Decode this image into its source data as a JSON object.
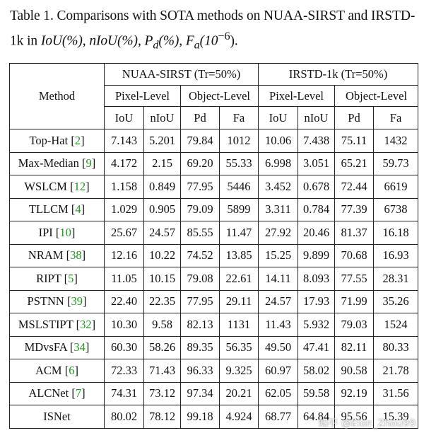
{
  "caption": {
    "prefix": "Table 1. Comparisons with SOTA methods on NUAA-SIRST and IRSTD-1k in ",
    "metrics": "IoU(%), nIoU(%), P",
    "pd_sub": "d",
    "pd_suffix": "(%), F",
    "fa_sub": "a",
    "fa_suffix": "(10",
    "exp": "−6",
    "end": ")."
  },
  "table": {
    "method_header": "Method",
    "datasets": [
      "NUAA-SIRST (Tr=50%)",
      "IRSTD-1k (Tr=50%)"
    ],
    "levels": [
      "Pixel-Level",
      "Object-Level",
      "Pixel-Level",
      "Object-Level"
    ],
    "metrics": [
      "IoU",
      "nIoU",
      "Pd",
      "Fa",
      "IoU",
      "nIoU",
      "Pd",
      "Fa"
    ],
    "rows": [
      {
        "method": "Top-Hat",
        "cite": "2",
        "values": [
          "7.143",
          "5.201",
          "79.84",
          "1012",
          "10.06",
          "7.438",
          "75.11",
          "1432"
        ]
      },
      {
        "method": "Max-Median",
        "cite": "9",
        "values": [
          "4.172",
          "2.15",
          "69.20",
          "55.33",
          "6.998",
          "3.051",
          "65.21",
          "59.73"
        ]
      },
      {
        "method": "WSLCM",
        "cite": "12",
        "values": [
          "1.158",
          "0.849",
          "77.95",
          "5446",
          "3.452",
          "0.678",
          "72.44",
          "6619"
        ]
      },
      {
        "method": "TLLCM",
        "cite": "4",
        "values": [
          "1.029",
          "0.905",
          "79.09",
          "5899",
          "3.311",
          "0.784",
          "77.39",
          "6738"
        ]
      },
      {
        "method": "IPI",
        "cite": "10",
        "values": [
          "25.67",
          "24.57",
          "85.55",
          "11.47",
          "27.92",
          "20.46",
          "81.37",
          "16.18"
        ]
      },
      {
        "method": "NRAM",
        "cite": "38",
        "values": [
          "12.16",
          "10.22",
          "74.52",
          "13.85",
          "15.25",
          "9.899",
          "70.68",
          "16.93"
        ]
      },
      {
        "method": "RIPT",
        "cite": "5",
        "values": [
          "11.05",
          "10.15",
          "79.08",
          "22.61",
          "14.11",
          "8.093",
          "77.55",
          "28.31"
        ]
      },
      {
        "method": "PSTNN",
        "cite": "39",
        "values": [
          "22.40",
          "22.35",
          "77.95",
          "29.11",
          "24.57",
          "17.93",
          "71.99",
          "35.26"
        ]
      },
      {
        "method": "MSLSTIPT",
        "cite": "32",
        "values": [
          "10.30",
          "9.58",
          "82.13",
          "1131",
          "11.43",
          "5.932",
          "79.03",
          "1524"
        ]
      },
      {
        "method": "MDvsFA",
        "cite": "34",
        "values": [
          "60.30",
          "58.26",
          "89.35",
          "56.35",
          "49.50",
          "47.41",
          "82.11",
          "80.33"
        ]
      },
      {
        "method": "ACM",
        "cite": "6",
        "values": [
          "72.33",
          "71.43",
          "96.33",
          "9.325",
          "60.97",
          "58.02",
          "90.58",
          "21.78"
        ]
      },
      {
        "method": "ALCNet",
        "cite": "7",
        "values": [
          "74.31",
          "73.12",
          "97.34",
          "20.21",
          "62.05",
          "59.58",
          "92.19",
          "31.56"
        ]
      }
    ],
    "ours": {
      "method": "ISNet",
      "values": [
        "80.02",
        "78.12",
        "99.18",
        "4.924",
        "68.77",
        "64.84",
        "95.56",
        "15.39"
      ]
    }
  },
  "watermark": "知乎 @Elon_Zhou99"
}
